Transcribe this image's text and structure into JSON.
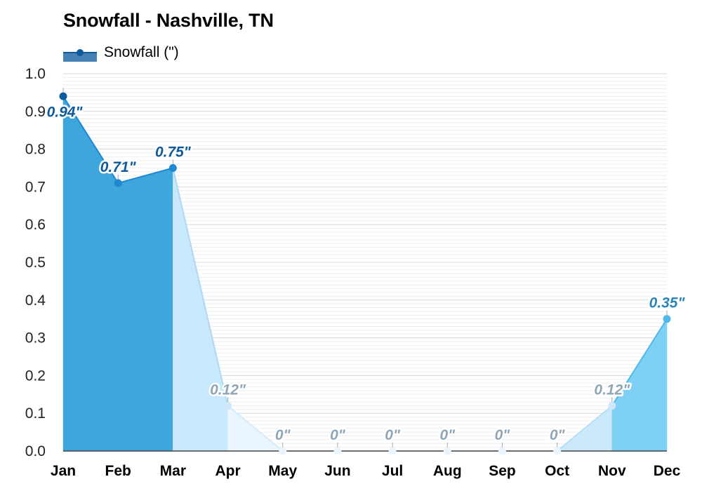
{
  "title": "Snowfall - Nashville, TN",
  "legend": {
    "label": "Snowfall (\")"
  },
  "colors": {
    "winter_dark": "#3fa6dc",
    "late_light": "#c8e8fb",
    "summer_pale": "#eaf5fd",
    "late_autumn": "#cbe9fb",
    "december": "#7fd0f5",
    "line_dark": "#0d5a9c",
    "line_mid": "#1e88d2",
    "label_dark": "#0d5a9c",
    "label_grey": "#8fa6b6",
    "label_dec": "#2a85b8"
  },
  "chart_data": {
    "type": "area",
    "title": "Snowfall - Nashville, TN",
    "categories": [
      "Jan",
      "Feb",
      "Mar",
      "Apr",
      "May",
      "Jun",
      "Jul",
      "Aug",
      "Sep",
      "Oct",
      "Nov",
      "Dec"
    ],
    "series": [
      {
        "name": "Snowfall (\")",
        "values": [
          0.94,
          0.71,
          0.75,
          0.12,
          0,
          0,
          0,
          0,
          0,
          0,
          0.12,
          0.35
        ]
      }
    ],
    "data_labels": [
      "0.94\"",
      "0.71\"",
      "0.75\"",
      "0.12\"",
      "0\"",
      "0\"",
      "0\"",
      "0\"",
      "0\"",
      "0\"",
      "0.12\"",
      "0.35\""
    ],
    "yticks": [
      "0.0",
      "0.1",
      "0.2",
      "0.3",
      "0.4",
      "0.5",
      "0.6",
      "0.7",
      "0.8",
      "0.9",
      "1.0"
    ],
    "ylim": [
      0,
      1.0
    ],
    "grid": true,
    "legend_position": "top-left"
  }
}
